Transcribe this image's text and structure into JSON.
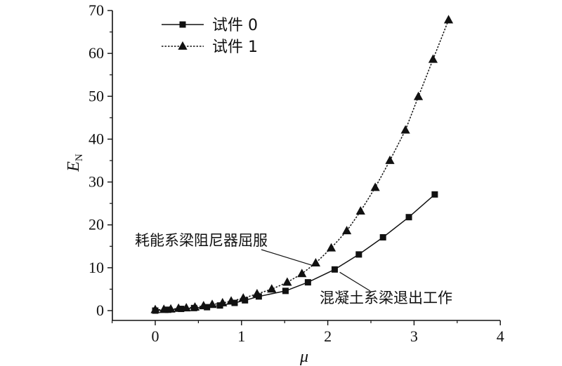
{
  "chart_data": {
    "type": "line",
    "xlabel": "μ",
    "ylabel": "E",
    "ylabel_sub": "N",
    "xlim": [
      -0.5,
      4
    ],
    "ylim": [
      -2,
      70
    ],
    "xticks": [
      "0",
      "1",
      "2",
      "3",
      "4"
    ],
    "yticks": [
      "0",
      "10",
      "20",
      "30",
      "40",
      "50",
      "60",
      "70"
    ],
    "legend_position": "top-left",
    "series": [
      {
        "name": "试件 0",
        "marker": "square",
        "line_style": "solid",
        "color": "#111111",
        "points": [
          [
            0.0,
            0.0
          ],
          [
            0.15,
            0.2
          ],
          [
            0.3,
            0.4
          ],
          [
            0.45,
            0.6
          ],
          [
            0.6,
            0.8
          ],
          [
            0.75,
            1.2
          ],
          [
            0.92,
            1.8
          ],
          [
            1.04,
            2.4
          ],
          [
            1.2,
            3.3
          ],
          [
            1.51,
            4.6
          ],
          [
            1.77,
            6.6
          ],
          [
            2.08,
            9.6
          ],
          [
            2.36,
            13.1
          ],
          [
            2.64,
            17.1
          ],
          [
            2.94,
            21.8
          ],
          [
            3.24,
            27.1
          ]
        ]
      },
      {
        "name": "试件 1",
        "marker": "triangle",
        "line_style": "dotted",
        "color": "#111111",
        "points": [
          [
            0.0,
            0.2
          ],
          [
            0.1,
            0.25
          ],
          [
            0.18,
            0.35
          ],
          [
            0.27,
            0.5
          ],
          [
            0.36,
            0.6
          ],
          [
            0.46,
            0.8
          ],
          [
            0.56,
            1.1
          ],
          [
            0.66,
            1.4
          ],
          [
            0.78,
            1.8
          ],
          [
            0.88,
            2.2
          ],
          [
            1.02,
            2.9
          ],
          [
            1.18,
            3.9
          ],
          [
            1.35,
            5.0
          ],
          [
            1.53,
            6.6
          ],
          [
            1.7,
            8.6
          ],
          [
            1.86,
            11.1
          ],
          [
            2.04,
            14.6
          ],
          [
            2.22,
            18.6
          ],
          [
            2.38,
            23.2
          ],
          [
            2.55,
            28.7
          ],
          [
            2.72,
            35.0
          ],
          [
            2.9,
            42.1
          ],
          [
            3.05,
            49.9
          ],
          [
            3.22,
            58.6
          ],
          [
            3.4,
            67.8
          ]
        ]
      }
    ],
    "annotations": [
      {
        "text": "耗能系梁阻尼器屈服",
        "target": [
          1.83,
          10.5
        ]
      },
      {
        "text": "混凝土系梁退出工作",
        "target": [
          2.09,
          9.6
        ]
      }
    ]
  }
}
